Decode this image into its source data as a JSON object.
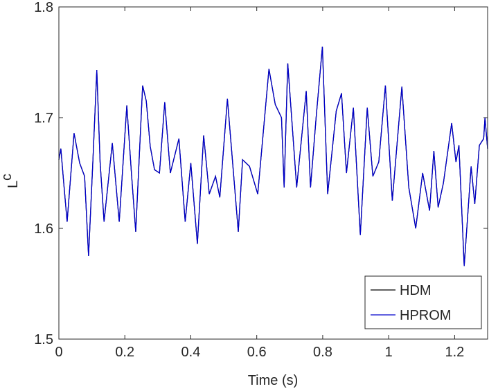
{
  "chart_data": {
    "type": "line",
    "xlabel": "Time (s)",
    "ylabel": "c",
    "ylabel_sub": "L",
    "x": [
      0,
      0.006,
      0.015,
      0.025,
      0.046,
      0.063,
      0.078,
      0.09,
      0.103,
      0.115,
      0.125,
      0.137,
      0.162,
      0.183,
      0.206,
      0.22,
      0.233,
      0.254,
      0.265,
      0.277,
      0.29,
      0.305,
      0.321,
      0.338,
      0.364,
      0.383,
      0.4,
      0.42,
      0.439,
      0.456,
      0.475,
      0.488,
      0.511,
      0.544,
      0.557,
      0.578,
      0.603,
      0.637,
      0.656,
      0.675,
      0.683,
      0.694,
      0.721,
      0.75,
      0.763,
      0.78,
      0.799,
      0.815,
      0.841,
      0.857,
      0.872,
      0.893,
      0.914,
      0.935,
      0.952,
      0.97,
      0.99,
      1.011,
      1.04,
      1.061,
      1.082,
      1.103,
      1.124,
      1.137,
      1.15,
      1.166,
      1.191,
      1.204,
      1.213,
      1.229,
      1.25,
      1.261,
      1.275,
      1.288,
      1.292,
      1.3
    ],
    "series": [
      {
        "name": "HDM",
        "color": "#000000",
        "values": [
          1.662,
          1.672,
          1.64,
          1.606,
          1.686,
          1.659,
          1.647,
          1.575,
          1.66,
          1.743,
          1.66,
          1.606,
          1.677,
          1.606,
          1.711,
          1.65,
          1.597,
          1.729,
          1.715,
          1.674,
          1.653,
          1.65,
          1.714,
          1.65,
          1.681,
          1.606,
          1.659,
          1.586,
          1.684,
          1.631,
          1.647,
          1.628,
          1.717,
          1.597,
          1.662,
          1.656,
          1.631,
          1.744,
          1.712,
          1.7,
          1.637,
          1.749,
          1.637,
          1.724,
          1.637,
          1.7,
          1.764,
          1.631,
          1.706,
          1.722,
          1.65,
          1.709,
          1.594,
          1.709,
          1.647,
          1.66,
          1.729,
          1.625,
          1.728,
          1.637,
          1.6,
          1.65,
          1.616,
          1.67,
          1.619,
          1.641,
          1.695,
          1.66,
          1.675,
          1.566,
          1.656,
          1.622,
          1.675,
          1.681,
          1.7,
          1.672
        ]
      },
      {
        "name": "HPROM",
        "color": "#0000cc",
        "values": [
          1.662,
          1.672,
          1.64,
          1.606,
          1.686,
          1.659,
          1.647,
          1.575,
          1.66,
          1.743,
          1.66,
          1.606,
          1.677,
          1.606,
          1.711,
          1.65,
          1.597,
          1.729,
          1.715,
          1.674,
          1.653,
          1.65,
          1.714,
          1.65,
          1.681,
          1.606,
          1.659,
          1.586,
          1.684,
          1.631,
          1.647,
          1.628,
          1.717,
          1.597,
          1.662,
          1.656,
          1.631,
          1.744,
          1.712,
          1.7,
          1.637,
          1.749,
          1.637,
          1.724,
          1.637,
          1.7,
          1.764,
          1.631,
          1.706,
          1.722,
          1.65,
          1.709,
          1.594,
          1.709,
          1.647,
          1.66,
          1.729,
          1.625,
          1.728,
          1.637,
          1.6,
          1.65,
          1.616,
          1.67,
          1.619,
          1.641,
          1.695,
          1.66,
          1.675,
          1.566,
          1.656,
          1.622,
          1.675,
          1.681,
          1.7,
          1.672
        ]
      }
    ],
    "xlim": [
      0,
      1.3
    ],
    "ylim": [
      1.5,
      1.8
    ],
    "xticks": [
      0,
      0.2,
      0.4,
      0.6,
      0.8,
      1,
      1.2
    ],
    "yticks": [
      1.5,
      1.6,
      1.7,
      1.8
    ],
    "legend": "lower right"
  }
}
